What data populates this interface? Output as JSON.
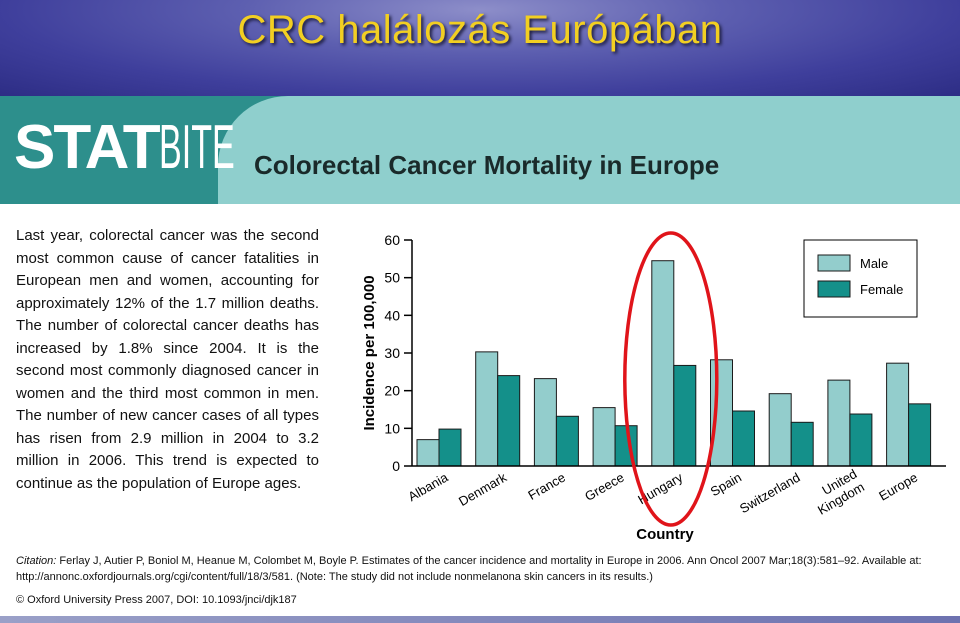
{
  "slide_title": "CRC halálozás Európában",
  "header": {
    "logo_bold": "STAT",
    "logo_light": "BITE",
    "title": "Colorectal Cancer Mortality in Europe"
  },
  "body_text": "Last year, colorectal cancer was the second most common cause of cancer fatalities in European men and women, accounting for approximately 12% of the 1.7 million deaths. The number of colorectal cancer deaths has increased by 1.8% since 2004. It is the second most commonly diagnosed cancer in women and the third most common in men. The number of new cancer cases of all types has risen from 2.9 million in 2004 to 3.2 million in 2006. This trend is expected to continue as the population of Europe ages.",
  "citation": {
    "label": "Citation:",
    "text": " Ferlay J, Autier P, Boniol M, Heanue M, Colombet M, Boyle P. Estimates of the cancer incidence and mortality in Europe in 2006. Ann Oncol 2007 Mar;18(3):581–92. Available at: http://annonc.oxfordjournals.org/cgi/content/full/18/3/581. (Note: The study did not include nonmelanona skin cancers in its results.)"
  },
  "copyright": "© Oxford University Press 2007, DOI: 10.1093/jnci/djk187",
  "colors": {
    "male": "#93cdcc",
    "female": "#14908a",
    "highlight_ellipse": "#e0141a",
    "title_gold": "#f2cf22"
  },
  "chart_data": {
    "type": "bar",
    "categories": [
      "Albania",
      "Denmark",
      "France",
      "Greece",
      "Hungary",
      "Spain",
      "Switzerland",
      "United Kingdom",
      "Europe"
    ],
    "category_labels": [
      [
        "Albania"
      ],
      [
        "Denmark"
      ],
      [
        "France"
      ],
      [
        "Greece"
      ],
      [
        "Hungary"
      ],
      [
        "Spain"
      ],
      [
        "Switzerland"
      ],
      [
        "United",
        "Kingdom"
      ],
      [
        "Europe"
      ]
    ],
    "series": [
      {
        "name": "Male",
        "values": [
          7,
          30.3,
          23.2,
          15.5,
          54.5,
          28.2,
          19.2,
          22.8,
          27.3
        ]
      },
      {
        "name": "Female",
        "values": [
          9.8,
          24,
          13.2,
          10.7,
          26.7,
          14.6,
          11.6,
          13.8,
          16.5
        ]
      }
    ],
    "xlabel": "Country",
    "ylabel": "Incidence per 100,000",
    "ylim": [
      0,
      60
    ],
    "yticks": [
      0,
      10,
      20,
      30,
      40,
      50,
      60
    ],
    "grid": false,
    "legend_position": "top-right",
    "highlighted_category": "Hungary",
    "highlight_shape": "ellipse"
  }
}
